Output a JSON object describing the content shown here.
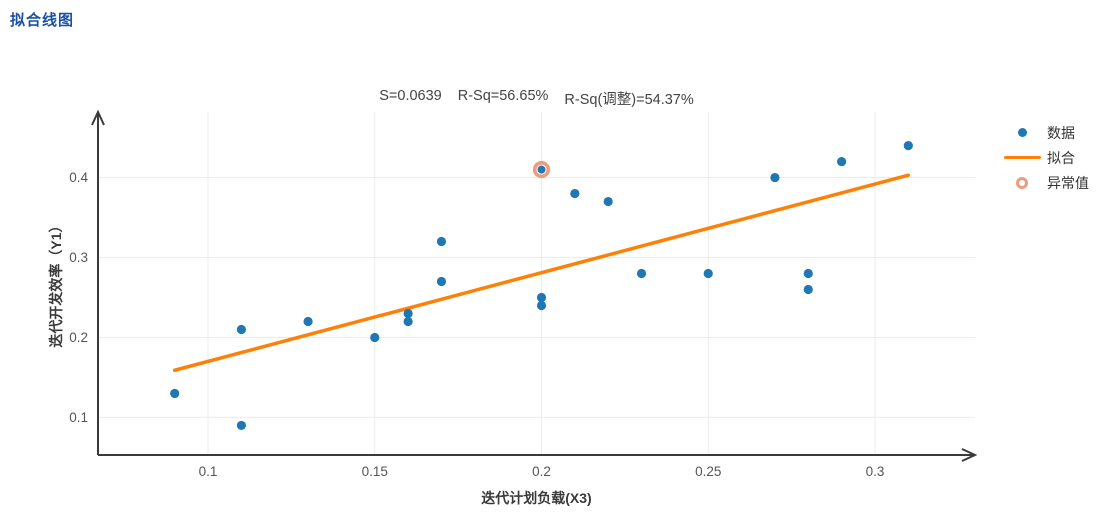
{
  "page": {
    "title": "拟合线图"
  },
  "chart_data": {
    "type": "scatter",
    "title": "拟合线图",
    "stats": [
      "S=0.0639",
      "R-Sq=56.65%",
      "R-Sq(调整)=54.37%"
    ],
    "xlabel": "迭代计划负载(X3)",
    "ylabel": "迭代开发效率（Y1）",
    "axes": {
      "xlim": [
        0.067,
        0.33
      ],
      "ylim": [
        0.053,
        0.482
      ],
      "x_ticks": [
        0.1,
        0.15,
        0.2,
        0.25,
        0.3
      ],
      "y_ticks": [
        0.1,
        0.2,
        0.3,
        0.4
      ],
      "grid": true,
      "arrow_axes": true
    },
    "series": [
      {
        "name": "数据",
        "type": "scatter",
        "color": "#1f77b4",
        "points": [
          [
            0.09,
            0.13
          ],
          [
            0.11,
            0.21
          ],
          [
            0.11,
            0.09
          ],
          [
            0.13,
            0.22
          ],
          [
            0.15,
            0.2
          ],
          [
            0.16,
            0.23
          ],
          [
            0.16,
            0.22
          ],
          [
            0.17,
            0.32
          ],
          [
            0.17,
            0.27
          ],
          [
            0.2,
            0.25
          ],
          [
            0.2,
            0.24
          ],
          [
            0.21,
            0.38
          ],
          [
            0.22,
            0.37
          ],
          [
            0.23,
            0.28
          ],
          [
            0.25,
            0.28
          ],
          [
            0.27,
            0.4
          ],
          [
            0.28,
            0.28
          ],
          [
            0.28,
            0.26
          ],
          [
            0.29,
            0.42
          ],
          [
            0.31,
            0.44
          ]
        ]
      },
      {
        "name": "拟合",
        "type": "line",
        "color": "#fd8109",
        "line": {
          "x1": 0.09,
          "y1": 0.159,
          "x2": 0.31,
          "y2": 0.403
        }
      },
      {
        "name": "异常值",
        "type": "outlier",
        "color": "#ef9b7f",
        "point_color": "#1f77b4",
        "points": [
          [
            0.2,
            0.41
          ]
        ]
      }
    ],
    "legend": {
      "position": "right",
      "items": [
        {
          "label": "数据",
          "marker": "dot",
          "color": "#1f77b4"
        },
        {
          "label": "拟合",
          "marker": "line",
          "color": "#fd8109"
        },
        {
          "label": "异常值",
          "marker": "ring",
          "color": "#ef9b7f"
        }
      ]
    },
    "colors": {
      "title": "#1a53a1",
      "axis": "#3a3a3a",
      "grid": "#ececec",
      "tick_text": "#555555"
    }
  }
}
